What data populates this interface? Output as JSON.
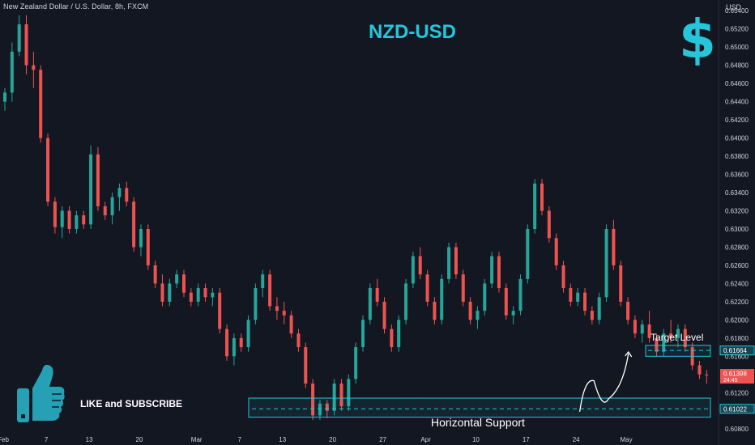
{
  "header": {
    "symbol_info": "New Zealand Dollar / U.S. Dollar, 8h, FXCM",
    "currency": "USD"
  },
  "title": "NZD-USD",
  "icons": {
    "corner": "dollar-sign-icon",
    "thumb": "thumbs-up-icon"
  },
  "annotations": {
    "cta": "LIKE and SUBSCRIBE",
    "target_label": "Target Level",
    "support_label": "Horizontal Support",
    "dollar_symbol": "$"
  },
  "colors": {
    "background": "#131722",
    "up": "#26a69a",
    "down": "#ef5350",
    "accent": "#26c6da",
    "text": "#d1d4dc"
  },
  "chart_data": {
    "type": "candlestick",
    "title": "NZD-USD",
    "ylim": [
      0.6082,
      0.6542
    ],
    "grid": false,
    "yticks": [
      "0.65400",
      "0.65200",
      "0.65000",
      "0.64800",
      "0.64600",
      "0.64400",
      "0.64200",
      "0.64000",
      "0.63800",
      "0.63600",
      "0.63400",
      "0.63200",
      "0.63000",
      "0.62800",
      "0.62600",
      "0.62400",
      "0.62200",
      "0.62000",
      "0.61800",
      "0.61600",
      "0.61200",
      "0.60800"
    ],
    "xticks": [
      {
        "label": "Feb",
        "x": 0
      },
      {
        "label": "7",
        "x": 6
      },
      {
        "label": "13",
        "x": 12
      },
      {
        "label": "20",
        "x": 19
      },
      {
        "label": "Mar",
        "x": 27
      },
      {
        "label": "7",
        "x": 33
      },
      {
        "label": "13",
        "x": 39
      },
      {
        "label": "20",
        "x": 46
      },
      {
        "label": "27",
        "x": 53
      },
      {
        "label": "Apr",
        "x": 59
      },
      {
        "label": "10",
        "x": 66
      },
      {
        "label": "17",
        "x": 73
      },
      {
        "label": "24",
        "x": 80
      },
      {
        "label": "May",
        "x": 87
      }
    ],
    "price_labels": [
      {
        "value": "0.61664",
        "price": 0.61664,
        "style": "target"
      },
      {
        "value": "0.61398",
        "price": 0.61398,
        "style": "current"
      },
      {
        "value": "0.61022",
        "price": 0.61022,
        "style": "support"
      }
    ],
    "current_countdown": "24:45",
    "target_level": 0.61664,
    "target_zone": [
      0.616,
      0.6172
    ],
    "support_level": 0.61022,
    "support_zone": [
      0.6093,
      0.6114
    ],
    "projection": [
      {
        "x": 80.5,
        "y": 0.6099
      },
      {
        "x": 82.5,
        "y": 0.6133
      },
      {
        "x": 84.5,
        "y": 0.6113
      },
      {
        "x": 86.5,
        "y": 0.613
      },
      {
        "x": 87.3,
        "y": 0.6163
      }
    ],
    "candles": [
      [
        0.644,
        0.6455,
        0.643,
        0.645
      ],
      [
        0.645,
        0.6505,
        0.644,
        0.6495
      ],
      [
        0.6495,
        0.6535,
        0.649,
        0.6525
      ],
      [
        0.6525,
        0.6535,
        0.647,
        0.648
      ],
      [
        0.648,
        0.6495,
        0.6455,
        0.6475
      ],
      [
        0.6475,
        0.648,
        0.6395,
        0.64
      ],
      [
        0.64,
        0.6405,
        0.6325,
        0.633
      ],
      [
        0.633,
        0.6335,
        0.6295,
        0.6302
      ],
      [
        0.6302,
        0.6325,
        0.629,
        0.632
      ],
      [
        0.632,
        0.6325,
        0.6295,
        0.63
      ],
      [
        0.63,
        0.632,
        0.6295,
        0.6315
      ],
      [
        0.6315,
        0.632,
        0.63,
        0.6305
      ],
      [
        0.6305,
        0.6392,
        0.63,
        0.6382
      ],
      [
        0.6382,
        0.639,
        0.632,
        0.6325
      ],
      [
        0.6325,
        0.633,
        0.631,
        0.6315
      ],
      [
        0.6315,
        0.634,
        0.6305,
        0.6335
      ],
      [
        0.6335,
        0.635,
        0.632,
        0.6345
      ],
      [
        0.6345,
        0.6352,
        0.6325,
        0.633
      ],
      [
        0.633,
        0.6335,
        0.6275,
        0.628
      ],
      [
        0.628,
        0.6305,
        0.627,
        0.63
      ],
      [
        0.63,
        0.6305,
        0.6255,
        0.626
      ],
      [
        0.626,
        0.6265,
        0.6235,
        0.624
      ],
      [
        0.624,
        0.625,
        0.6215,
        0.622
      ],
      [
        0.622,
        0.6245,
        0.6215,
        0.624
      ],
      [
        0.624,
        0.6255,
        0.6235,
        0.625
      ],
      [
        0.625,
        0.6255,
        0.6225,
        0.623
      ],
      [
        0.623,
        0.6235,
        0.6215,
        0.622
      ],
      [
        0.622,
        0.624,
        0.6215,
        0.6235
      ],
      [
        0.6235,
        0.624,
        0.622,
        0.6225
      ],
      [
        0.6225,
        0.6235,
        0.6215,
        0.623
      ],
      [
        0.623,
        0.6235,
        0.6185,
        0.619
      ],
      [
        0.619,
        0.6195,
        0.6155,
        0.616
      ],
      [
        0.616,
        0.6185,
        0.615,
        0.618
      ],
      [
        0.618,
        0.6185,
        0.6165,
        0.617
      ],
      [
        0.617,
        0.6205,
        0.6165,
        0.62
      ],
      [
        0.62,
        0.624,
        0.6195,
        0.6235
      ],
      [
        0.6235,
        0.6255,
        0.6225,
        0.625
      ],
      [
        0.625,
        0.6255,
        0.621,
        0.6215
      ],
      [
        0.6215,
        0.6225,
        0.62,
        0.621
      ],
      [
        0.621,
        0.622,
        0.6195,
        0.6205
      ],
      [
        0.6205,
        0.621,
        0.618,
        0.6185
      ],
      [
        0.6185,
        0.619,
        0.6165,
        0.617
      ],
      [
        0.617,
        0.6175,
        0.6125,
        0.613
      ],
      [
        0.613,
        0.6135,
        0.609,
        0.6095
      ],
      [
        0.6095,
        0.6112,
        0.609,
        0.6108
      ],
      [
        0.6108,
        0.6112,
        0.6092,
        0.61
      ],
      [
        0.61,
        0.6135,
        0.6095,
        0.613
      ],
      [
        0.613,
        0.6135,
        0.61,
        0.6105
      ],
      [
        0.6105,
        0.614,
        0.61,
        0.6135
      ],
      [
        0.6135,
        0.6175,
        0.613,
        0.617
      ],
      [
        0.617,
        0.6205,
        0.6165,
        0.62
      ],
      [
        0.62,
        0.624,
        0.6195,
        0.6235
      ],
      [
        0.6235,
        0.6245,
        0.6215,
        0.622
      ],
      [
        0.622,
        0.6225,
        0.6185,
        0.619
      ],
      [
        0.619,
        0.6195,
        0.6165,
        0.617
      ],
      [
        0.617,
        0.6205,
        0.6165,
        0.62
      ],
      [
        0.62,
        0.6245,
        0.6195,
        0.624
      ],
      [
        0.624,
        0.6275,
        0.6235,
        0.627
      ],
      [
        0.627,
        0.628,
        0.6245,
        0.625
      ],
      [
        0.625,
        0.6255,
        0.6215,
        0.622
      ],
      [
        0.622,
        0.6225,
        0.6195,
        0.62
      ],
      [
        0.62,
        0.625,
        0.6195,
        0.6245
      ],
      [
        0.6245,
        0.6285,
        0.624,
        0.628
      ],
      [
        0.628,
        0.6285,
        0.6245,
        0.625
      ],
      [
        0.625,
        0.6255,
        0.6215,
        0.622
      ],
      [
        0.622,
        0.6225,
        0.6195,
        0.62
      ],
      [
        0.62,
        0.6215,
        0.619,
        0.621
      ],
      [
        0.621,
        0.6245,
        0.6205,
        0.624
      ],
      [
        0.624,
        0.6275,
        0.6235,
        0.627
      ],
      [
        0.627,
        0.6275,
        0.623,
        0.6235
      ],
      [
        0.6235,
        0.624,
        0.62,
        0.6205
      ],
      [
        0.6205,
        0.6215,
        0.6195,
        0.621
      ],
      [
        0.621,
        0.625,
        0.6205,
        0.6245
      ],
      [
        0.6245,
        0.6305,
        0.624,
        0.63
      ],
      [
        0.63,
        0.6355,
        0.6295,
        0.635
      ],
      [
        0.635,
        0.6355,
        0.6315,
        0.632
      ],
      [
        0.632,
        0.6325,
        0.6285,
        0.629
      ],
      [
        0.629,
        0.6295,
        0.6255,
        0.626
      ],
      [
        0.626,
        0.6265,
        0.623,
        0.6235
      ],
      [
        0.6235,
        0.624,
        0.6215,
        0.622
      ],
      [
        0.622,
        0.6235,
        0.6215,
        0.623
      ],
      [
        0.623,
        0.6235,
        0.6205,
        0.621
      ],
      [
        0.621,
        0.6215,
        0.6195,
        0.62
      ],
      [
        0.62,
        0.623,
        0.6195,
        0.6225
      ],
      [
        0.6225,
        0.6305,
        0.622,
        0.63
      ],
      [
        0.63,
        0.631,
        0.6255,
        0.626
      ],
      [
        0.626,
        0.6265,
        0.6215,
        0.622
      ],
      [
        0.622,
        0.6225,
        0.6195,
        0.62
      ],
      [
        0.62,
        0.6205,
        0.618,
        0.6185
      ],
      [
        0.6185,
        0.62,
        0.6175,
        0.6195
      ],
      [
        0.6195,
        0.621,
        0.6175,
        0.618
      ],
      [
        0.618,
        0.6185,
        0.616,
        0.6165
      ],
      [
        0.6165,
        0.619,
        0.616,
        0.6185
      ],
      [
        0.6185,
        0.62,
        0.6175,
        0.618
      ],
      [
        0.618,
        0.6195,
        0.617,
        0.619
      ],
      [
        0.619,
        0.6195,
        0.6165,
        0.617
      ],
      [
        0.617,
        0.6175,
        0.6145,
        0.615
      ],
      [
        0.615,
        0.6155,
        0.6135,
        0.614
      ],
      [
        0.614,
        0.6145,
        0.613,
        0.6139
      ]
    ]
  }
}
